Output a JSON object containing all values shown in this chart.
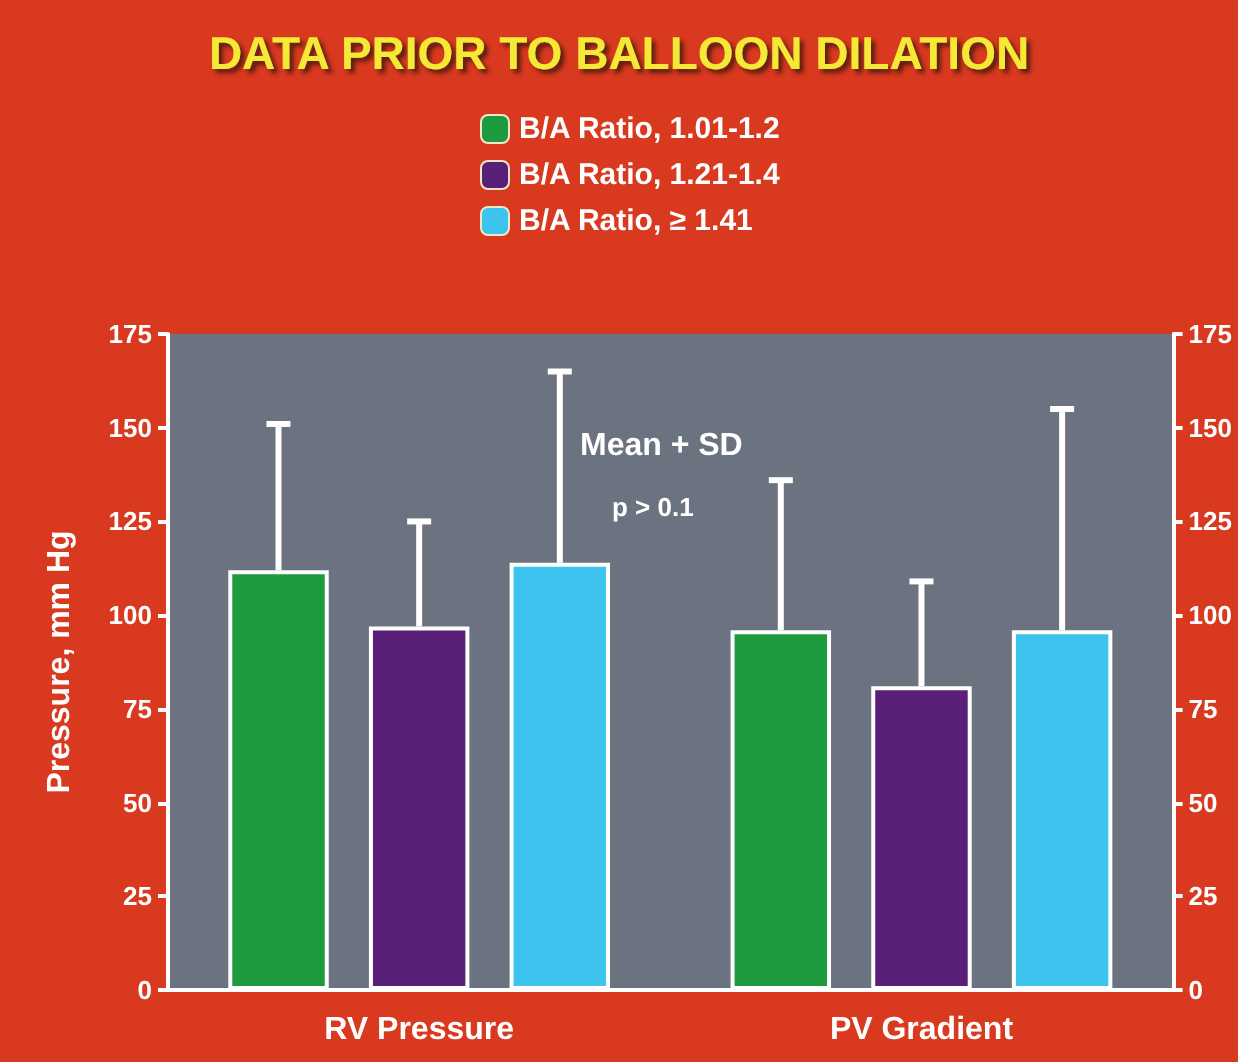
{
  "chart_data": {
    "type": "bar",
    "title": "DATA PRIOR TO BALLOON DILATION",
    "categories": [
      "RV Pressure",
      "PV Gradient"
    ],
    "series": [
      {
        "name": "B/A Ratio, 1.01-1.2",
        "color": "#1e9a3e",
        "values": [
          112,
          96
        ],
        "errors": [
          [
            112,
            151
          ],
          [
            96,
            136
          ]
        ]
      },
      {
        "name": "B/A Ratio, 1.21-1.4",
        "color": "#5a1f78",
        "values": [
          97,
          81
        ],
        "errors": [
          [
            97,
            125
          ],
          [
            81,
            109
          ]
        ]
      },
      {
        "name": "B/A Ratio, ≥ 1.41",
        "color": "#3cc4ee",
        "values": [
          114,
          96
        ],
        "errors": [
          [
            114,
            165
          ],
          [
            96,
            155
          ]
        ]
      }
    ],
    "ylabel": "Pressure, mm Hg",
    "ylim": [
      0,
      175
    ],
    "yticks": [
      0,
      25,
      50,
      75,
      100,
      125,
      150,
      175
    ],
    "y2lim": [
      0,
      175
    ],
    "y2ticks": [
      0,
      25,
      50,
      75,
      100,
      125,
      150,
      175
    ],
    "annotations": [
      "Mean + SD",
      "p > 0.1"
    ],
    "legend": "top",
    "grid": false
  }
}
